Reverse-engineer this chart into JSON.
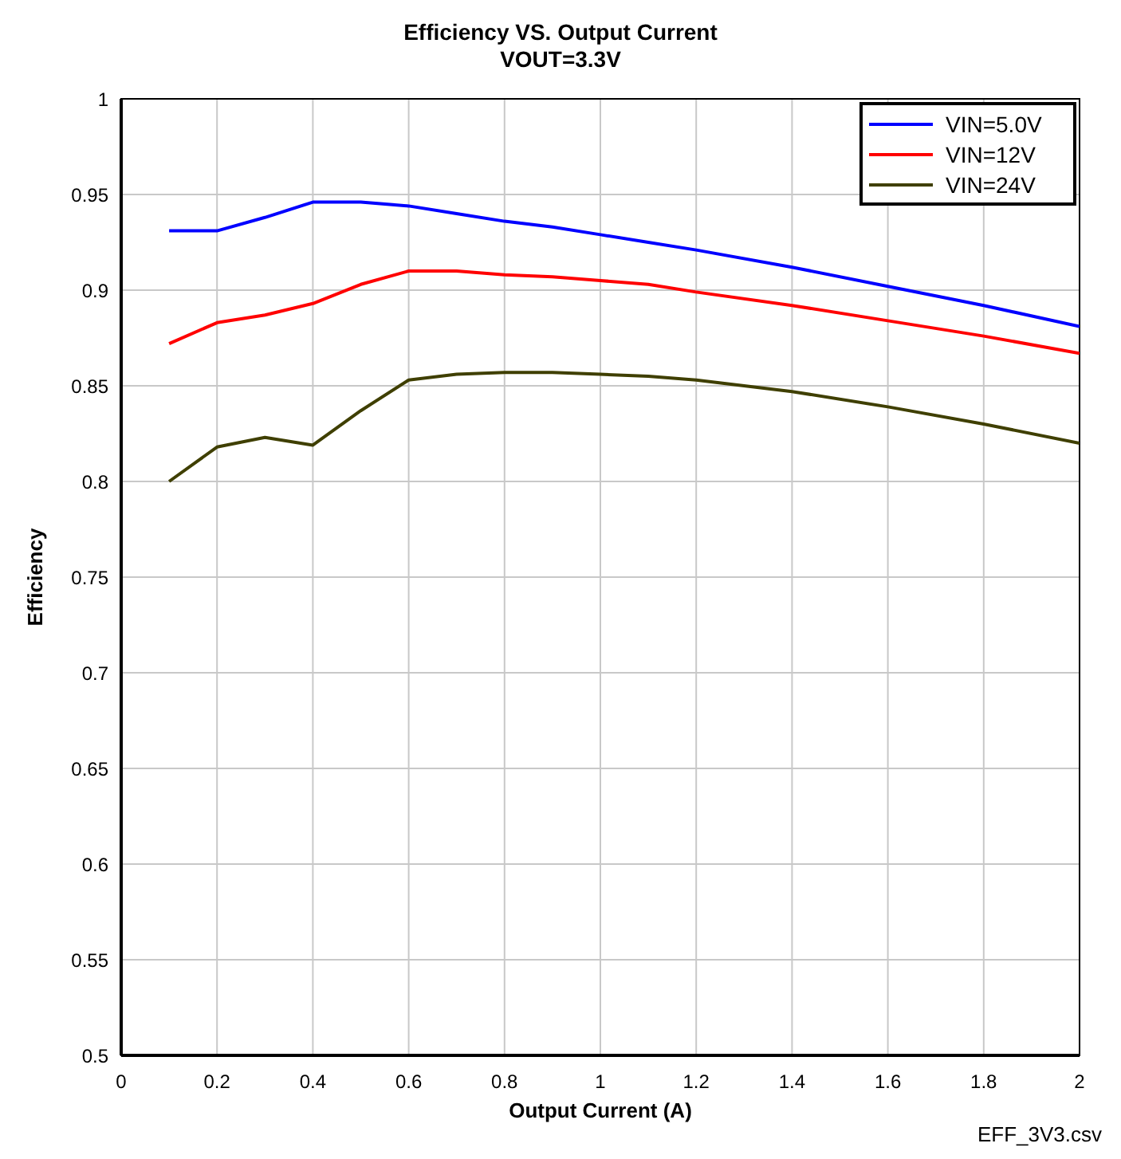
{
  "chart_data": {
    "type": "line",
    "title": "Efficiency VS. Output Current",
    "subtitle": "VOUT=3.3V",
    "xlabel": "Output Current (A)",
    "ylabel": "Efficiency",
    "annotations": [
      "EFF_3V3.csv"
    ],
    "x": [
      0.1,
      0.2,
      0.3,
      0.4,
      0.5,
      0.6,
      0.7,
      0.8,
      0.9,
      1.0,
      1.1,
      1.2,
      1.4,
      1.6,
      1.8,
      2.0
    ],
    "series": [
      {
        "name": "VIN=5.0V",
        "color": "#0000ff",
        "values": [
          0.931,
          0.931,
          0.938,
          0.946,
          0.946,
          0.944,
          0.94,
          0.936,
          0.933,
          0.929,
          0.925,
          0.921,
          0.912,
          0.902,
          0.892,
          0.881
        ]
      },
      {
        "name": "VIN=12V",
        "color": "#ff0000",
        "values": [
          0.872,
          0.883,
          0.887,
          0.893,
          0.903,
          0.91,
          0.91,
          0.908,
          0.907,
          0.905,
          0.903,
          0.899,
          0.892,
          0.884,
          0.876,
          0.867
        ]
      },
      {
        "name": "VIN=24V",
        "color": "#3f3f00",
        "values": [
          0.8,
          0.818,
          0.823,
          0.819,
          0.837,
          0.853,
          0.856,
          0.857,
          0.857,
          0.856,
          0.855,
          0.853,
          0.847,
          0.839,
          0.83,
          0.82
        ]
      }
    ],
    "xlim": [
      0,
      2
    ],
    "xticks": [
      0,
      0.2,
      0.4,
      0.6,
      0.8,
      1,
      1.2,
      1.4,
      1.6,
      1.8,
      2
    ],
    "ylim": [
      0.5,
      1
    ],
    "yticks": [
      0.5,
      0.55,
      0.6,
      0.65,
      0.7,
      0.75,
      0.8,
      0.85,
      0.9,
      0.95,
      1
    ],
    "grid": true,
    "legend": "top right",
    "marker": "none",
    "line_style": "solid"
  }
}
